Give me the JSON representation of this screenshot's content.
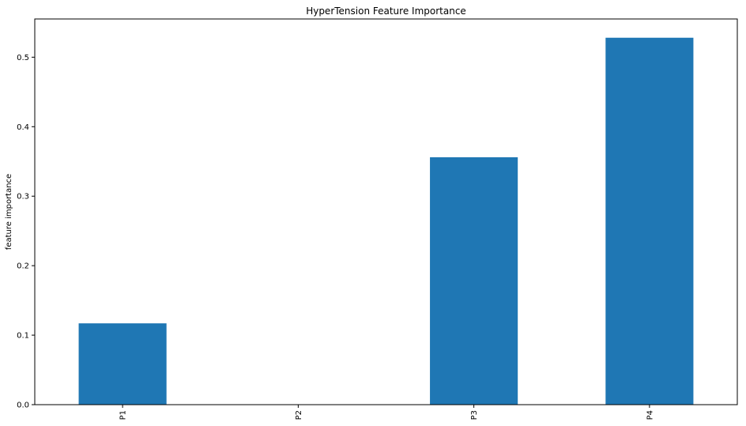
{
  "chart_data": {
    "type": "bar",
    "title": "HyperTension Feature Importance",
    "xlabel": "",
    "ylabel": "feature importance",
    "categories": [
      "P1",
      "P2",
      "P3",
      "P4"
    ],
    "values": [
      0.117,
      0.0,
      0.356,
      0.528
    ],
    "ylim": [
      0,
      0.555
    ],
    "yticks": [
      0.0,
      0.1,
      0.2,
      0.3,
      0.4,
      0.5
    ],
    "ytick_labels": [
      "0.0",
      "0.1",
      "0.2",
      "0.3",
      "0.4",
      "0.5"
    ],
    "grid": false,
    "legend": "none",
    "bar_color": "#1f77b4"
  }
}
